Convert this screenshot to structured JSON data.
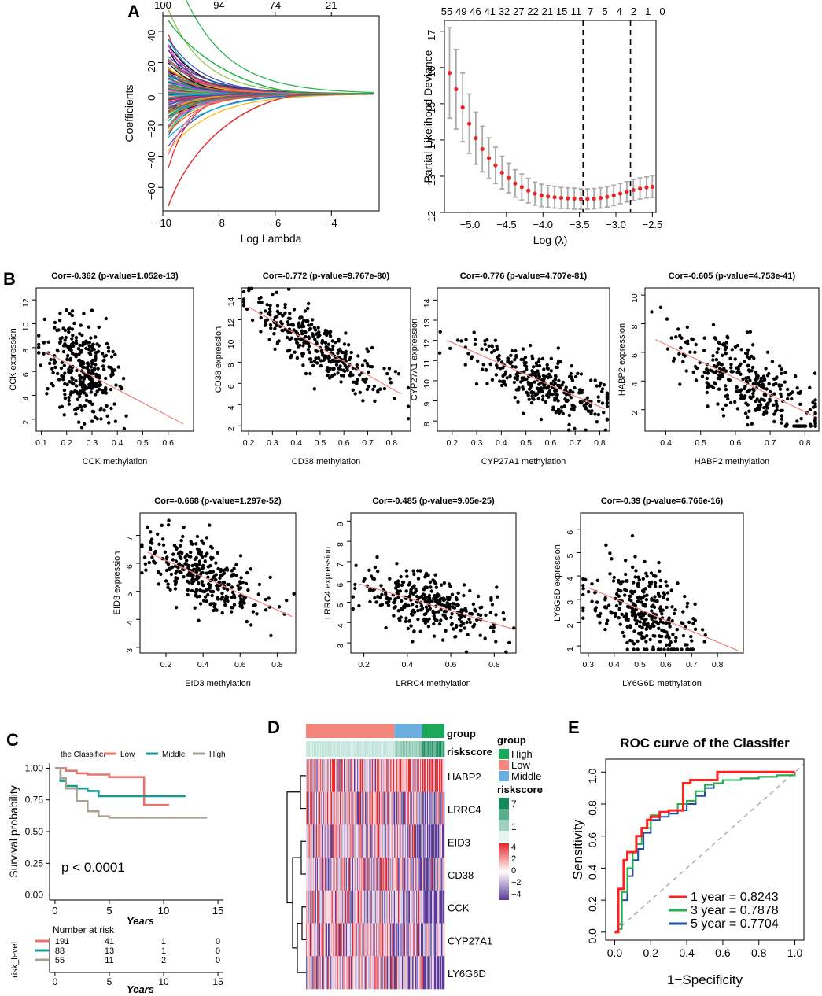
{
  "panel_labels": {
    "A": "A",
    "B": "B",
    "C": "C",
    "D": "D",
    "E": "E"
  },
  "colors": {
    "point_red": "#e8262a",
    "fit_line": "#f08080",
    "low": "#e8746c",
    "middle": "#17998e",
    "high": "#a8a192",
    "roc1": "#ff2020",
    "roc3": "#22b14c",
    "roc5": "#1f4fa8",
    "heat_high": "#e8262a",
    "heat_low": "#5a3c96",
    "group_high": "#1aa85a",
    "group_low": "#f4877b",
    "group_middle": "#6aaee0",
    "risk_dark": "#138a5a",
    "risk_light": "#e6f5f3"
  },
  "chart_data": [
    {
      "id": "A_left",
      "type": "line",
      "title": "",
      "xlabel": "Log Lambda",
      "ylabel": "Coefficients",
      "xlim": [
        -10,
        -2.3
      ],
      "ylim": [
        -75,
        50
      ],
      "x_ticks": [
        "−10",
        "−8",
        "−6",
        "−4"
      ],
      "y_ticks": [
        "−60",
        "−40",
        "−20",
        "0",
        "20",
        "40"
      ],
      "top_ticks": [
        "100",
        "94",
        "74",
        "21"
      ],
      "series_summary": "coefficient paths converge to 0 as log lambda increases (~150 paths)"
    },
    {
      "id": "A_right",
      "type": "scatter",
      "title": "",
      "xlabel": "Log (λ)",
      "ylabel": "Partial Likelihood Deviance",
      "xlim": [
        -5.35,
        -2.45
      ],
      "ylim": [
        12,
        17.3
      ],
      "x_ticks": [
        "−5.0",
        "−4.5",
        "−4.0",
        "−3.5",
        "−3.0",
        "−2.5"
      ],
      "y_ticks": [
        "12",
        "13",
        "14",
        "15",
        "16",
        "17"
      ],
      "top_ticks": [
        "55",
        "49",
        "46",
        "41",
        "32",
        "27",
        "22",
        "21",
        "15",
        "11",
        "7",
        "5",
        "4",
        "2",
        "1",
        "0"
      ],
      "vlines": [
        -3.45,
        -2.8
      ],
      "x": [
        -5.28,
        -5.19,
        -5.1,
        -5.01,
        -4.92,
        -4.83,
        -4.74,
        -4.65,
        -4.56,
        -4.47,
        -4.38,
        -4.29,
        -4.2,
        -4.11,
        -4.02,
        -3.93,
        -3.84,
        -3.75,
        -3.66,
        -3.57,
        -3.48,
        -3.39,
        -3.3,
        -3.21,
        -3.12,
        -3.03,
        -2.94,
        -2.85,
        -2.76,
        -2.67,
        -2.58,
        -2.5
      ],
      "y": [
        15.85,
        15.4,
        14.9,
        14.45,
        14.05,
        13.75,
        13.5,
        13.3,
        13.1,
        12.95,
        12.8,
        12.7,
        12.6,
        12.52,
        12.47,
        12.44,
        12.42,
        12.4,
        12.39,
        12.38,
        12.37,
        12.37,
        12.38,
        12.4,
        12.43,
        12.47,
        12.52,
        12.57,
        12.62,
        12.66,
        12.69,
        12.71
      ],
      "err": [
        1.25,
        1.1,
        0.95,
        0.82,
        0.72,
        0.63,
        0.56,
        0.5,
        0.45,
        0.41,
        0.38,
        0.36,
        0.34,
        0.32,
        0.31,
        0.3,
        0.3,
        0.29,
        0.29,
        0.29,
        0.28,
        0.28,
        0.28,
        0.28,
        0.28,
        0.28,
        0.28,
        0.28,
        0.29,
        0.29,
        0.29,
        0.3
      ]
    },
    {
      "id": "B1",
      "type": "scatter",
      "title": "Cor=-0.362 (p-value=1.052e-13)",
      "xlabel": "CCK methylation",
      "ylabel": "CCK expression",
      "xlim": [
        0.08,
        0.7
      ],
      "ylim": [
        1,
        13
      ],
      "x_ticks": [
        "0.1",
        "0.2",
        "0.3",
        "0.4",
        "0.5",
        "0.6"
      ],
      "y_ticks": [
        "2",
        "4",
        "6",
        "8",
        "10",
        "12"
      ],
      "fit": [
        [
          0.12,
          7.6
        ],
        [
          0.66,
          1.6
        ]
      ],
      "center": [
        0.26,
        6.3
      ],
      "spread": [
        0.07,
        2.0
      ]
    },
    {
      "id": "B2",
      "type": "scatter",
      "title": "Cor=-0.772 (p-value=9.767e-80)",
      "xlabel": "CD38 methylation",
      "ylabel": "CD38 expression",
      "xlim": [
        0.17,
        0.88
      ],
      "ylim": [
        1.5,
        15
      ],
      "x_ticks": [
        "0.2",
        "0.3",
        "0.4",
        "0.5",
        "0.6",
        "0.7",
        "0.8"
      ],
      "y_ticks": [
        "2",
        "4",
        "6",
        "8",
        "10",
        "12",
        "14"
      ],
      "fit": [
        [
          0.2,
          13.2
        ],
        [
          0.84,
          5.0
        ]
      ],
      "center": [
        0.5,
        9.5
      ],
      "spread": [
        0.15,
        1.2
      ]
    },
    {
      "id": "B3",
      "type": "scatter",
      "title": "Cor=-0.776 (p-value=4.707e-81)",
      "xlabel": "CYP27A1 methylation",
      "ylabel": "CYP27A1 expression",
      "xlim": [
        0.14,
        0.84
      ],
      "ylim": [
        7.5,
        14.6
      ],
      "x_ticks": [
        "0.2",
        "0.3",
        "0.4",
        "0.5",
        "0.6",
        "0.7",
        "0.8"
      ],
      "y_ticks": [
        "8",
        "9",
        "10",
        "11",
        "12",
        "13",
        "14"
      ],
      "fit": [
        [
          0.18,
          12.0
        ],
        [
          0.82,
          8.6
        ]
      ],
      "center": [
        0.55,
        10.0
      ],
      "spread": [
        0.15,
        0.7
      ]
    },
    {
      "id": "B4",
      "type": "scatter",
      "title": "Cor=-0.605 (p-value=4.753e-41)",
      "xlabel": "HABP2 methylation",
      "ylabel": "HABP2 expression",
      "xlim": [
        0.34,
        0.84
      ],
      "ylim": [
        0.5,
        10.5
      ],
      "x_ticks": [
        "0.4",
        "0.5",
        "0.6",
        "0.7",
        "0.8"
      ],
      "y_ticks": [
        "2",
        "4",
        "6",
        "8",
        "10"
      ],
      "fit": [
        [
          0.37,
          6.9
        ],
        [
          0.83,
          1.5
        ]
      ],
      "center": [
        0.65,
        3.3
      ],
      "spread": [
        0.1,
        1.4
      ]
    },
    {
      "id": "B5",
      "type": "scatter",
      "title": "Cor=-0.668 (p-value=1.297e-52)",
      "xlabel": "EID3 methylation",
      "ylabel": "EID3 expression",
      "xlim": [
        0.06,
        0.9
      ],
      "ylim": [
        2.8,
        7.8
      ],
      "x_ticks": [
        "0.2",
        "0.4",
        "0.6",
        "0.8"
      ],
      "y_ticks": [
        "3",
        "4",
        "5",
        "6",
        "7"
      ],
      "fit": [
        [
          0.1,
          6.4
        ],
        [
          0.88,
          4.1
        ]
      ],
      "center": [
        0.4,
        5.5
      ],
      "spread": [
        0.15,
        0.55
      ]
    },
    {
      "id": "B6",
      "type": "scatter",
      "title": "Cor=-0.485 (p-value=9.05e-25)",
      "xlabel": "LRRC4 methylation",
      "ylabel": "LRRC4 expression",
      "xlim": [
        0.14,
        0.9
      ],
      "ylim": [
        2.5,
        9.4
      ],
      "x_ticks": [
        "0.2",
        "0.4",
        "0.6",
        "0.8"
      ],
      "y_ticks": [
        "3",
        "4",
        "5",
        "6",
        "7",
        "8",
        "9"
      ],
      "fit": [
        [
          0.18,
          5.9
        ],
        [
          0.88,
          3.7
        ]
      ],
      "center": [
        0.5,
        4.9
      ],
      "spread": [
        0.14,
        0.75
      ]
    },
    {
      "id": "B7",
      "type": "scatter",
      "title": "Cor=-0.39 (p-value=6.766e-16)",
      "xlabel": "LY6G6D methylation",
      "ylabel": "LY6G6D expression",
      "xlim": [
        0.27,
        0.9
      ],
      "ylim": [
        0.7,
        6.7
      ],
      "x_ticks": [
        "0.3",
        "0.4",
        "0.5",
        "0.6",
        "0.7",
        "0.8"
      ],
      "y_ticks": [
        "1",
        "2",
        "3",
        "4",
        "5",
        "6"
      ],
      "fit": [
        [
          0.3,
          3.5
        ],
        [
          0.88,
          0.8
        ]
      ],
      "center": [
        0.52,
        2.6
      ],
      "spread": [
        0.1,
        1.0
      ]
    },
    {
      "id": "C",
      "type": "line",
      "title": "",
      "legend_title": "the Classifier",
      "legend": [
        "Low",
        "Middle",
        "High"
      ],
      "xlabel": "Years",
      "ylabel": "Survival probability",
      "xlim": [
        0,
        15
      ],
      "ylim": [
        0,
        1
      ],
      "x_ticks": [
        "0",
        "5",
        "10",
        "15"
      ],
      "y_ticks": [
        "0.00",
        "0.25",
        "0.50",
        "0.75",
        "1.00"
      ],
      "pvalue": "p < 0.0001",
      "series": [
        {
          "name": "Low",
          "x": [
            0,
            1,
            2,
            3,
            5,
            8,
            8.2,
            10.5
          ],
          "y": [
            1,
            0.98,
            0.96,
            0.95,
            0.93,
            0.93,
            0.71,
            0.71
          ]
        },
        {
          "name": "Middle",
          "x": [
            0,
            0.5,
            1,
            2,
            3,
            4,
            6,
            8,
            12
          ],
          "y": [
            1,
            0.9,
            0.86,
            0.84,
            0.82,
            0.78,
            0.78,
            0.78,
            0.78
          ]
        },
        {
          "name": "High",
          "x": [
            0,
            0.5,
            1,
            2,
            3,
            4,
            5,
            8,
            14
          ],
          "y": [
            1,
            0.92,
            0.84,
            0.74,
            0.66,
            0.62,
            0.61,
            0.61,
            0.61
          ]
        }
      ],
      "risk_table": {
        "title": "Number at risk",
        "row_label": "risk_level",
        "rows": [
          [
            "191",
            "41",
            "1",
            "0"
          ],
          [
            "88",
            "13",
            "1",
            "0"
          ],
          [
            "55",
            "11",
            "2",
            "0"
          ]
        ],
        "xlabel": "Years",
        "x_ticks": [
          "0",
          "5",
          "10",
          "15"
        ]
      }
    },
    {
      "id": "D",
      "type": "heatmap",
      "genes": [
        "HABP2",
        "LRRC4",
        "EID3",
        "CD38",
        "CCK",
        "CYP27A1",
        "LY6G6D"
      ],
      "annotation_rows": [
        "group",
        "riskscore"
      ],
      "group_fractions": {
        "Low": 0.64,
        "Middle": 0.2,
        "High": 0.16
      },
      "legend_group_title": "group",
      "legend_group": [
        "High",
        "Low",
        "Middle"
      ],
      "legend_risk_title": "riskscore",
      "legend_risk_ticks": [
        "7",
        "1"
      ],
      "color_scale_ticks": [
        "4",
        "2",
        "0",
        "−2",
        "−4"
      ]
    },
    {
      "id": "E",
      "type": "line",
      "title": "ROC curve of the Classifer",
      "xlabel": "1−Specificity",
      "ylabel": "Sensitivity",
      "xlim": [
        -0.05,
        1.05
      ],
      "ylim": [
        -0.05,
        1.08
      ],
      "x_ticks": [
        "0.0",
        "0.2",
        "0.4",
        "0.6",
        "0.8",
        "1.0"
      ],
      "y_ticks": [
        "0.0",
        "0.2",
        "0.4",
        "0.6",
        "0.8",
        "1.0"
      ],
      "legend": [
        "1 year = 0.8243",
        "3 year = 0.7878",
        "5 year = 0.7704"
      ],
      "series": [
        {
          "name": "1 year",
          "x": [
            0,
            0.02,
            0.02,
            0.05,
            0.07,
            0.1,
            0.12,
            0.15,
            0.18,
            0.2,
            0.25,
            0.3,
            0.35,
            0.38,
            0.38,
            0.42,
            0.5,
            0.55,
            0.57,
            0.6,
            0.7,
            0.8,
            1.0
          ],
          "y": [
            0,
            0,
            0.27,
            0.45,
            0.5,
            0.5,
            0.6,
            0.65,
            0.7,
            0.72,
            0.75,
            0.76,
            0.76,
            0.76,
            0.93,
            0.95,
            0.95,
            0.95,
            1.0,
            1.0,
            1.0,
            1.0,
            1.0
          ]
        },
        {
          "name": "3 year",
          "x": [
            0,
            0.02,
            0.04,
            0.07,
            0.1,
            0.12,
            0.15,
            0.2,
            0.25,
            0.3,
            0.35,
            0.4,
            0.45,
            0.5,
            0.55,
            0.6,
            0.65,
            0.7,
            0.8,
            0.9,
            1.0
          ],
          "y": [
            0,
            0.02,
            0.25,
            0.4,
            0.5,
            0.55,
            0.65,
            0.73,
            0.75,
            0.76,
            0.8,
            0.82,
            0.88,
            0.92,
            0.93,
            0.95,
            0.95,
            0.96,
            0.97,
            0.98,
            0.99
          ]
        },
        {
          "name": "5 year",
          "x": [
            0,
            0.02,
            0.04,
            0.07,
            0.1,
            0.13,
            0.16,
            0.2,
            0.25,
            0.3,
            0.35,
            0.4,
            0.45,
            0.5,
            0.55,
            0.6,
            0.7,
            0.8,
            0.9,
            1.0
          ],
          "y": [
            0,
            0.05,
            0.2,
            0.35,
            0.45,
            0.52,
            0.62,
            0.7,
            0.72,
            0.74,
            0.76,
            0.8,
            0.85,
            0.9,
            0.93,
            0.95,
            0.96,
            0.97,
            0.98,
            1.0
          ]
        }
      ]
    }
  ]
}
